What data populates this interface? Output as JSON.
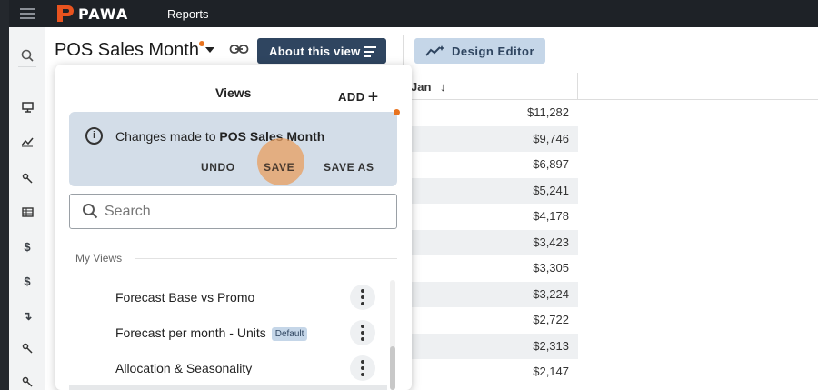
{
  "app": {
    "brand": "PAWA",
    "nav_reports": "Reports",
    "brand_color": "#e8531f"
  },
  "header": {
    "view_title": "POS Sales Month",
    "about_button": "About this view",
    "design_editor_button": "Design Editor"
  },
  "left_rail": {
    "icons": [
      "search-icon",
      "monitor-icon",
      "line-chart-icon",
      "key-icon",
      "table-icon",
      "dollar-icon",
      "dollar-icon",
      "arrow-down-icon",
      "key-icon",
      "key-icon"
    ]
  },
  "table": {
    "column_header": "Jan",
    "sort_indicator": "↓",
    "rows": [
      "$11,282",
      "$9,746",
      "$6,897",
      "$5,241",
      "$4,178",
      "$3,423",
      "$3,305",
      "$3,224",
      "$2,722",
      "$2,313",
      "$2,147"
    ]
  },
  "views_panel": {
    "title": "Views",
    "add_label": "ADD",
    "changes_prefix": "Changes made to",
    "changes_view_name": "POS Sales Month",
    "undo_label": "UNDO",
    "save_label": "SAVE",
    "save_as_label": "SAVE AS",
    "search_placeholder": "Search",
    "section_label": "My Views",
    "items": [
      {
        "label": "Forecast Base vs Promo",
        "badge": ""
      },
      {
        "label": "Forecast per month - Units",
        "badge": "Default"
      },
      {
        "label": "Allocation & Seasonality",
        "badge": ""
      }
    ]
  }
}
